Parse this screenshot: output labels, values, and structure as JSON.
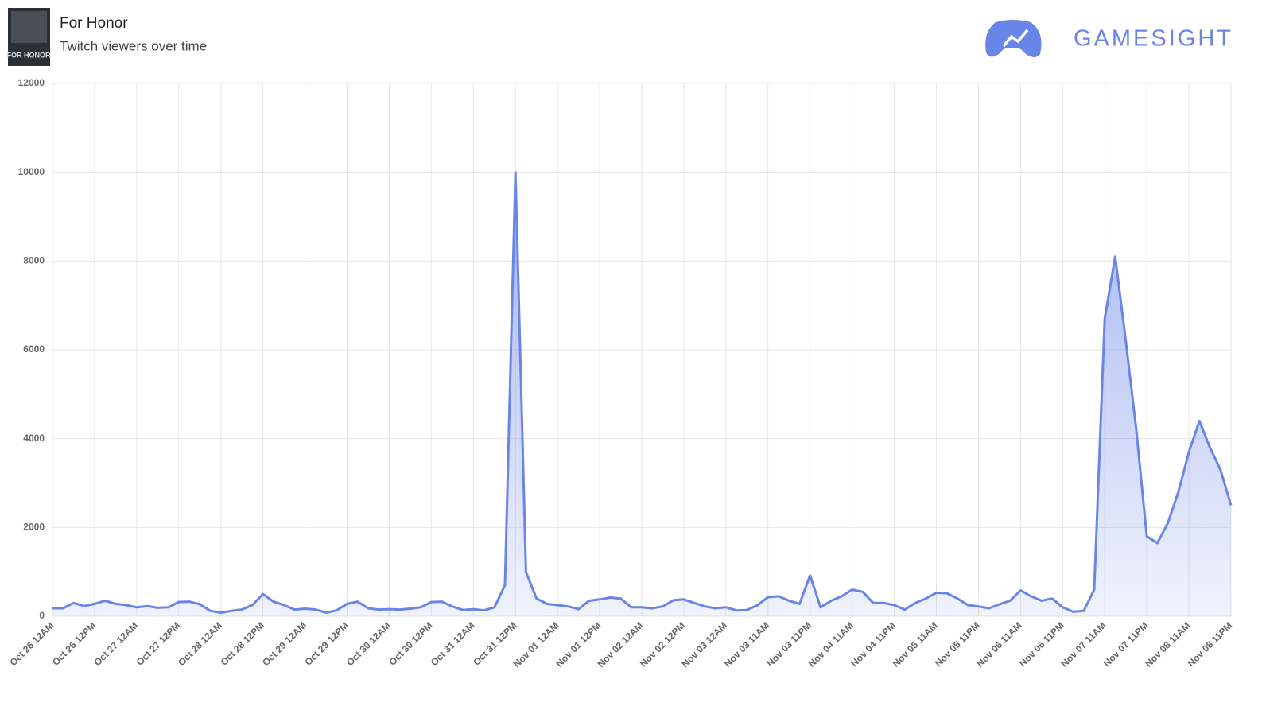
{
  "brand": "GAMESIGHT",
  "cover_text": "FOR HONOR",
  "chart_data": {
    "type": "area",
    "title": "For Honor",
    "subtitle": "Twitch viewers over time",
    "categories": [
      "Oct 26 12AM",
      null,
      null,
      null,
      "Oct 26 12PM",
      null,
      null,
      null,
      "Oct 27 12AM",
      null,
      null,
      null,
      "Oct 27 12PM",
      null,
      null,
      null,
      "Oct 28 12AM",
      null,
      null,
      null,
      "Oct 28 12PM",
      null,
      null,
      null,
      "Oct 29 12AM",
      null,
      null,
      null,
      "Oct 29 12PM",
      null,
      null,
      null,
      "Oct 30 12AM",
      null,
      null,
      null,
      "Oct 30 12PM",
      null,
      null,
      null,
      "Oct 31 12AM",
      null,
      null,
      null,
      "Oct 31 12PM",
      null,
      null,
      null,
      "Nov 01 12AM",
      null,
      null,
      null,
      "Nov 01 12PM",
      null,
      null,
      null,
      "Nov 02 12AM",
      null,
      null,
      null,
      "Nov 02 12PM",
      null,
      null,
      null,
      "Nov 03 12AM",
      null,
      null,
      null,
      "Nov 03 11AM",
      null,
      null,
      null,
      "Nov 03 11PM",
      null,
      null,
      null,
      "Nov 04 11AM",
      null,
      null,
      null,
      "Nov 04 11PM",
      null,
      null,
      null,
      "Nov 05 11AM",
      null,
      null,
      null,
      "Nov 05 11PM",
      null,
      null,
      null,
      "Nov 06 11AM",
      null,
      null,
      null,
      "Nov 06 11PM",
      null,
      null,
      null,
      "Nov 07 11AM",
      null,
      null,
      null,
      "Nov 07 11PM",
      null,
      null,
      null,
      "Nov 08 11AM",
      null,
      null,
      null,
      "Nov 08 11PM"
    ],
    "values": [
      180,
      180,
      300,
      230,
      280,
      350,
      280,
      250,
      200,
      230,
      190,
      200,
      320,
      330,
      270,
      120,
      80,
      120,
      150,
      250,
      500,
      330,
      250,
      150,
      170,
      150,
      80,
      130,
      280,
      330,
      180,
      150,
      160,
      150,
      170,
      200,
      320,
      330,
      220,
      140,
      160,
      130,
      200,
      700,
      10000,
      1000,
      400,
      280,
      250,
      220,
      160,
      350,
      380,
      420,
      400,
      200,
      200,
      180,
      220,
      360,
      380,
      300,
      220,
      180,
      200,
      130,
      140,
      250,
      430,
      450,
      350,
      280,
      920,
      200,
      350,
      450,
      600,
      550,
      300,
      300,
      250,
      150,
      300,
      400,
      530,
      520,
      400,
      250,
      220,
      180,
      270,
      350,
      580,
      450,
      350,
      400,
      200,
      100,
      120,
      600,
      6700,
      8100,
      6200,
      4200,
      1800,
      1650,
      2100,
      2800,
      3700,
      4400,
      3800,
      3300,
      2500
    ],
    "color": "#6a85e8",
    "ylim": [
      0,
      12000
    ],
    "yticks": [
      0,
      2000,
      4000,
      6000,
      8000,
      10000,
      12000
    ],
    "grid": true
  }
}
